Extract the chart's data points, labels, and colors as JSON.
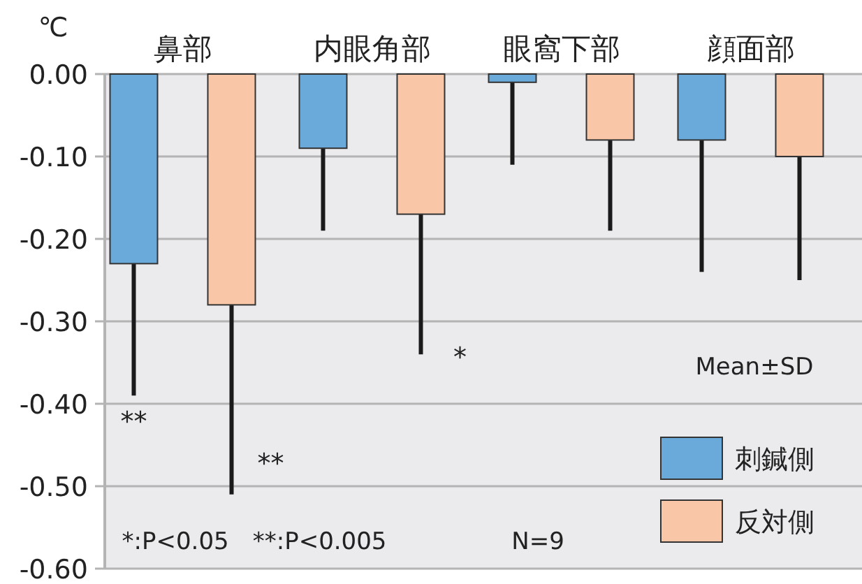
{
  "chart_data": {
    "type": "bar",
    "ylabel": "℃",
    "categories": [
      "鼻部",
      "内眼角部",
      "眼窩下部",
      "顔面部"
    ],
    "series": [
      {
        "name": "刺鍼側",
        "color": "#6aaadb",
        "values": [
          -0.23,
          -0.09,
          -0.01,
          -0.08
        ],
        "errors": [
          [
            -0.39,
            -0.23
          ],
          [
            -0.19,
            -0.09
          ],
          [
            -0.11,
            -0.01
          ],
          [
            -0.24,
            -0.08
          ]
        ]
      },
      {
        "name": "反対側",
        "color": "#f9c6a8",
        "values": [
          -0.28,
          -0.17,
          -0.08,
          -0.1
        ],
        "errors": [
          [
            -0.51,
            -0.28
          ],
          [
            -0.34,
            -0.17
          ],
          [
            -0.19,
            -0.08
          ],
          [
            -0.25,
            -0.1
          ]
        ]
      }
    ],
    "ylim": [
      -0.6,
      0
    ],
    "yticks": [
      {
        "value": 0,
        "label": "0.00"
      },
      {
        "value": -0.1,
        "label": "-0.10"
      },
      {
        "value": -0.2,
        "label": "-0.20"
      },
      {
        "value": -0.3,
        "label": "-0.30"
      },
      {
        "value": -0.4,
        "label": "-0.40"
      },
      {
        "value": -0.5,
        "label": "-0.50"
      },
      {
        "value": -0.6,
        "label": "-0.60"
      }
    ],
    "grid": "y",
    "legend": "bottom right",
    "annotations": [
      "**",
      "**",
      "*",
      "Mean±SD",
      "*:P<0.05　**:P<0.005",
      "N=9"
    ]
  }
}
